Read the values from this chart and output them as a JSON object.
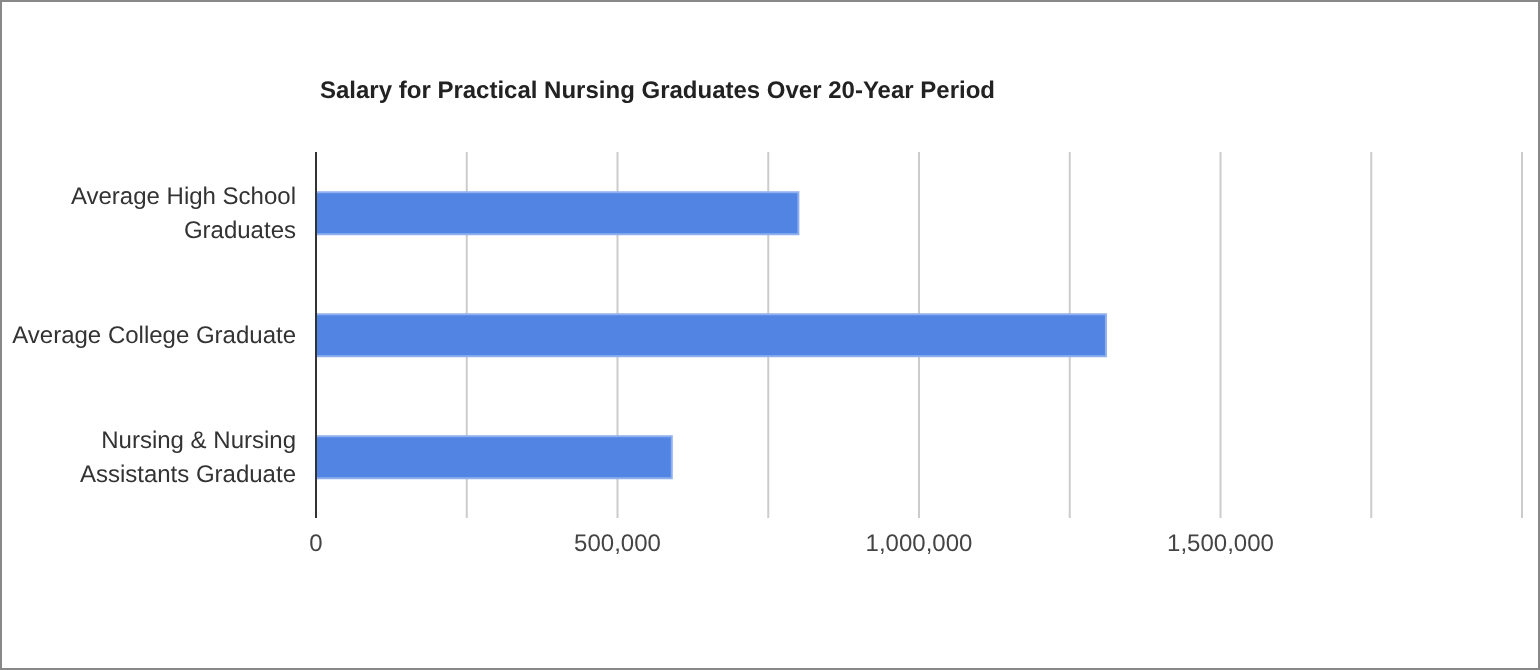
{
  "chart_data": {
    "type": "bar",
    "orientation": "horizontal",
    "title": "Salary for Practical Nursing Graduates Over 20-Year Period",
    "categories": [
      "Average High School Graduates",
      "Average College Graduate",
      "Nursing & Nursing Assistants Graduate"
    ],
    "values": [
      800000,
      1310000,
      590000
    ],
    "color": "#5284e3",
    "xlim": [
      0,
      2000000
    ],
    "xticks": [
      0,
      {
        "value": 250000,
        "label": null
      },
      {
        "value": 500000,
        "label": "500,000"
      },
      {
        "value": 750000,
        "label": null
      },
      {
        "value": 1000000,
        "label": "1,000,000"
      },
      {
        "value": 1250000,
        "label": null
      },
      {
        "value": 1500000,
        "label": "1,500,000"
      },
      {
        "value": 1750000,
        "label": null
      },
      {
        "value": 2000000,
        "label": null
      }
    ],
    "grid": "x",
    "legend": false
  }
}
